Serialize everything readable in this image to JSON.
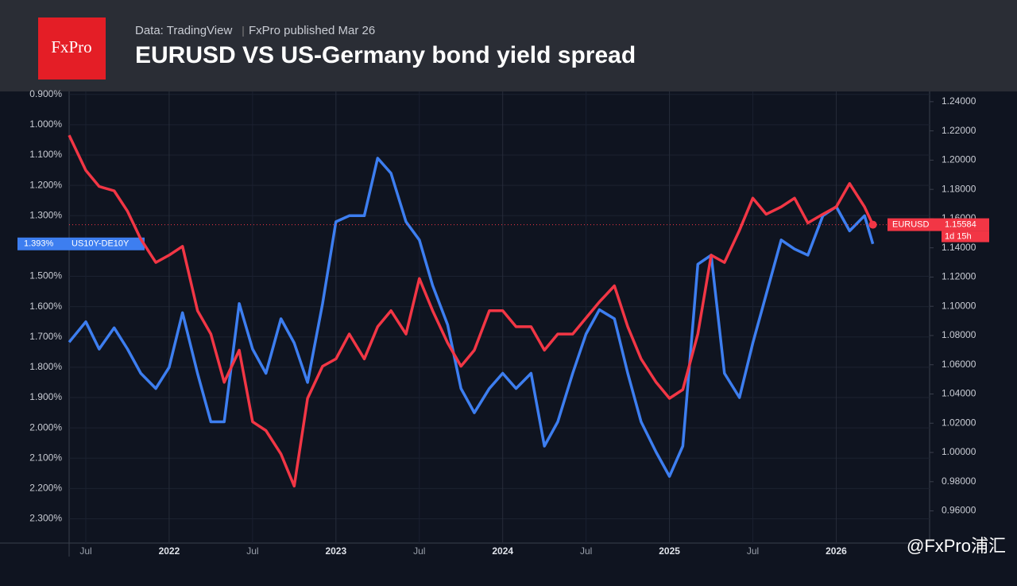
{
  "logo": "FxPro",
  "header": {
    "source": "Data: TradingView",
    "published": "FxPro published Mar 26"
  },
  "watermark": "@FxPro浦汇",
  "chart_data": {
    "type": "line",
    "title": "EURUSD VS US-Germany bond yield spread",
    "x": [
      2021.4,
      2021.5,
      2021.58,
      2021.67,
      2021.75,
      2021.83,
      2021.92,
      2022.0,
      2022.08,
      2022.17,
      2022.25,
      2022.33,
      2022.42,
      2022.5,
      2022.58,
      2022.67,
      2022.75,
      2022.83,
      2022.92,
      2023.0,
      2023.08,
      2023.17,
      2023.25,
      2023.33,
      2023.42,
      2023.5,
      2023.58,
      2023.67,
      2023.75,
      2023.83,
      2023.92,
      2024.0,
      2024.08,
      2024.17,
      2024.25,
      2024.33,
      2024.42,
      2024.5,
      2024.58,
      2024.67,
      2024.75,
      2024.83,
      2024.92,
      2025.0,
      2025.08,
      2025.17,
      2025.25,
      2025.33,
      2025.42,
      2025.5,
      2025.58,
      2025.67,
      2025.75,
      2025.83,
      2025.92,
      2026.0,
      2026.08,
      2026.17,
      2026.22
    ],
    "xlim": [
      2021.4,
      2026.56
    ],
    "xticks": [
      {
        "value": 2021.5,
        "label": "Jul"
      },
      2022,
      {
        "value": 2022.5,
        "label": "Jul"
      },
      2023,
      {
        "value": 2023.5,
        "label": "Jul"
      },
      2024,
      {
        "value": 2024.5,
        "label": "Jul"
      },
      2025,
      {
        "value": 2025.5,
        "label": "Jul"
      },
      2026
    ],
    "ylim": [
      0.89,
      2.38
    ],
    "y_inverted": true,
    "yticks": [
      {
        "value": 0.9,
        "label": "0.900%"
      },
      {
        "value": 1.0,
        "label": "1.000%"
      },
      {
        "value": 1.1,
        "label": "1.100%"
      },
      {
        "value": 1.2,
        "label": "1.200%"
      },
      {
        "value": 1.3,
        "label": "1.300%"
      },
      {
        "value": 1.5,
        "label": "1.500%"
      },
      {
        "value": 1.6,
        "label": "1.600%"
      },
      {
        "value": 1.7,
        "label": "1.700%"
      },
      {
        "value": 1.8,
        "label": "1.800%"
      },
      {
        "value": 1.9,
        "label": "1.900%"
      },
      {
        "value": 2.0,
        "label": "2.000%"
      },
      {
        "value": 2.1,
        "label": "2.100%"
      },
      {
        "value": 2.2,
        "label": "2.200%"
      },
      {
        "value": 2.3,
        "label": "2.300%"
      }
    ],
    "y2lim": [
      0.938,
      1.247
    ],
    "y2ticks": [
      {
        "value": 1.24,
        "label": "1.24000"
      },
      {
        "value": 1.22,
        "label": "1.22000"
      },
      {
        "value": 1.2,
        "label": "1.20000"
      },
      {
        "value": 1.18,
        "label": "1.18000"
      },
      {
        "value": 1.16,
        "label": "1.16000"
      },
      {
        "value": 1.14,
        "label": "1.14000"
      },
      {
        "value": 1.12,
        "label": "1.12000"
      },
      {
        "value": 1.1,
        "label": "1.10000"
      },
      {
        "value": 1.08,
        "label": "1.08000"
      },
      {
        "value": 1.06,
        "label": "1.06000"
      },
      {
        "value": 1.04,
        "label": "1.04000"
      },
      {
        "value": 1.02,
        "label": "1.02000"
      },
      {
        "value": 1.0,
        "label": "1.00000"
      },
      {
        "value": 0.98,
        "label": "0.98000"
      },
      {
        "value": 0.96,
        "label": "0.96000"
      }
    ],
    "grid": true,
    "series": [
      {
        "name": "US10Y-DE10Y",
        "color": "#3d7ef0",
        "axis": "y",
        "last_label": "1.393%",
        "values": [
          1.717,
          1.65,
          1.74,
          1.67,
          1.74,
          1.82,
          1.87,
          1.8,
          1.62,
          1.82,
          1.98,
          1.98,
          1.59,
          1.74,
          1.82,
          1.64,
          1.72,
          1.85,
          1.59,
          1.32,
          1.3,
          1.3,
          1.11,
          1.16,
          1.32,
          1.38,
          1.53,
          1.66,
          1.87,
          1.95,
          1.87,
          1.82,
          1.87,
          1.82,
          2.06,
          1.98,
          1.82,
          1.69,
          1.61,
          1.64,
          1.82,
          1.98,
          2.08,
          2.16,
          2.06,
          1.46,
          1.43,
          1.82,
          1.9,
          1.72,
          1.56,
          1.38,
          1.41,
          1.43,
          1.3,
          1.27,
          1.35,
          1.3,
          1.393
        ]
      },
      {
        "name": "EURUSD",
        "color": "#f23645",
        "axis": "y2",
        "last_label": "1.15584",
        "countdown": "1d 15h",
        "values": [
          1.217,
          1.193,
          1.182,
          1.179,
          1.165,
          1.146,
          1.13,
          1.135,
          1.141,
          1.097,
          1.081,
          1.048,
          1.07,
          1.021,
          1.015,
          0.999,
          0.977,
          1.037,
          1.059,
          1.064,
          1.081,
          1.064,
          1.086,
          1.097,
          1.081,
          1.119,
          1.097,
          1.075,
          1.059,
          1.07,
          1.097,
          1.097,
          1.086,
          1.086,
          1.07,
          1.081,
          1.081,
          1.092,
          1.103,
          1.114,
          1.086,
          1.064,
          1.048,
          1.037,
          1.043,
          1.081,
          1.135,
          1.13,
          1.152,
          1.174,
          1.163,
          1.168,
          1.174,
          1.157,
          1.163,
          1.168,
          1.184,
          1.168,
          1.15584
        ]
      }
    ]
  }
}
